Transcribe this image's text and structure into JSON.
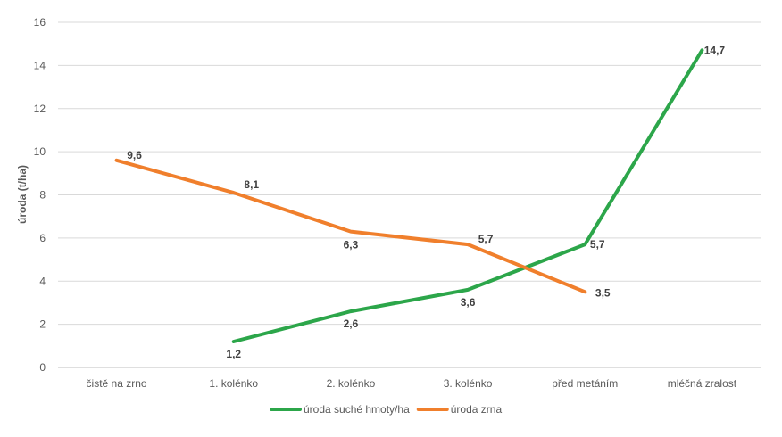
{
  "chart_data": {
    "type": "line",
    "ylabel": "úroda (t/ha)",
    "xlabel": "",
    "ylim": [
      0,
      16
    ],
    "yticks": [
      0,
      2,
      4,
      6,
      8,
      10,
      12,
      14,
      16
    ],
    "grid": true,
    "legend_position": "bottom",
    "categories": [
      "čistě na zrno",
      "1. kolénko",
      "2. kolénko",
      "3. kolénko",
      "před metáním",
      "mléčná zralost"
    ],
    "series": [
      {
        "name": "úroda suché hmoty/ha",
        "color": "#2ca64a",
        "values": [
          null,
          1.2,
          2.6,
          3.6,
          5.7,
          14.7
        ],
        "labels": [
          "",
          "1,2",
          "2,6",
          "3,6",
          "5,7",
          "14,7"
        ]
      },
      {
        "name": "úroda zrna",
        "color": "#f07f2c",
        "values": [
          9.6,
          8.1,
          6.3,
          5.7,
          3.5,
          null
        ],
        "labels": [
          "9,6",
          "8,1",
          "6,3",
          "5,7",
          "3,5",
          ""
        ]
      }
    ]
  }
}
